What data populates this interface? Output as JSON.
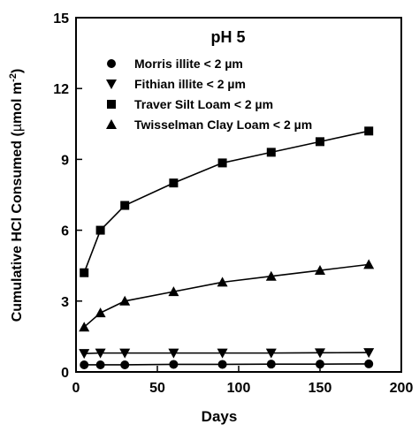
{
  "chart_data": {
    "type": "line",
    "title": "pH 5",
    "xlabel": "Days",
    "ylabel": "Cumulative HCl Consumed (µmol m⁻²)",
    "ylabel_main": "Cumulative HCl Consumed (",
    "ylabel_unit_mu": "µ",
    "ylabel_unit_rest": "mol m",
    "ylabel_sup": "-2",
    "ylabel_close": ")",
    "xlim": [
      0,
      200
    ],
    "ylim": [
      0,
      15
    ],
    "xticks": [
      0,
      50,
      100,
      150,
      200
    ],
    "yticks": [
      0,
      3,
      6,
      9,
      12,
      15
    ],
    "grid": false,
    "legend_position": "top-left",
    "series": [
      {
        "name": "Morris illite < 2 µm",
        "marker": "circle",
        "x": [
          5,
          15,
          30,
          60,
          90,
          120,
          150,
          180
        ],
        "y": [
          0.3,
          0.3,
          0.3,
          0.32,
          0.32,
          0.33,
          0.33,
          0.34
        ]
      },
      {
        "name": "Fithian illite < 2 µm",
        "marker": "triangle-down",
        "x": [
          5,
          15,
          30,
          60,
          90,
          120,
          150,
          180
        ],
        "y": [
          0.78,
          0.8,
          0.8,
          0.8,
          0.8,
          0.8,
          0.81,
          0.82
        ]
      },
      {
        "name": "Traver Silt Loam  < 2 µm",
        "marker": "square",
        "x": [
          5,
          15,
          30,
          60,
          90,
          120,
          150,
          180
        ],
        "y": [
          4.2,
          6.0,
          7.05,
          8.0,
          8.85,
          9.3,
          9.75,
          10.2
        ]
      },
      {
        "name": "Twisselman Clay Loam < 2 µm",
        "marker": "triangle-up",
        "x": [
          5,
          15,
          30,
          60,
          90,
          120,
          150,
          180
        ],
        "y": [
          1.9,
          2.5,
          3.0,
          3.4,
          3.8,
          4.05,
          4.3,
          4.55
        ]
      }
    ]
  }
}
